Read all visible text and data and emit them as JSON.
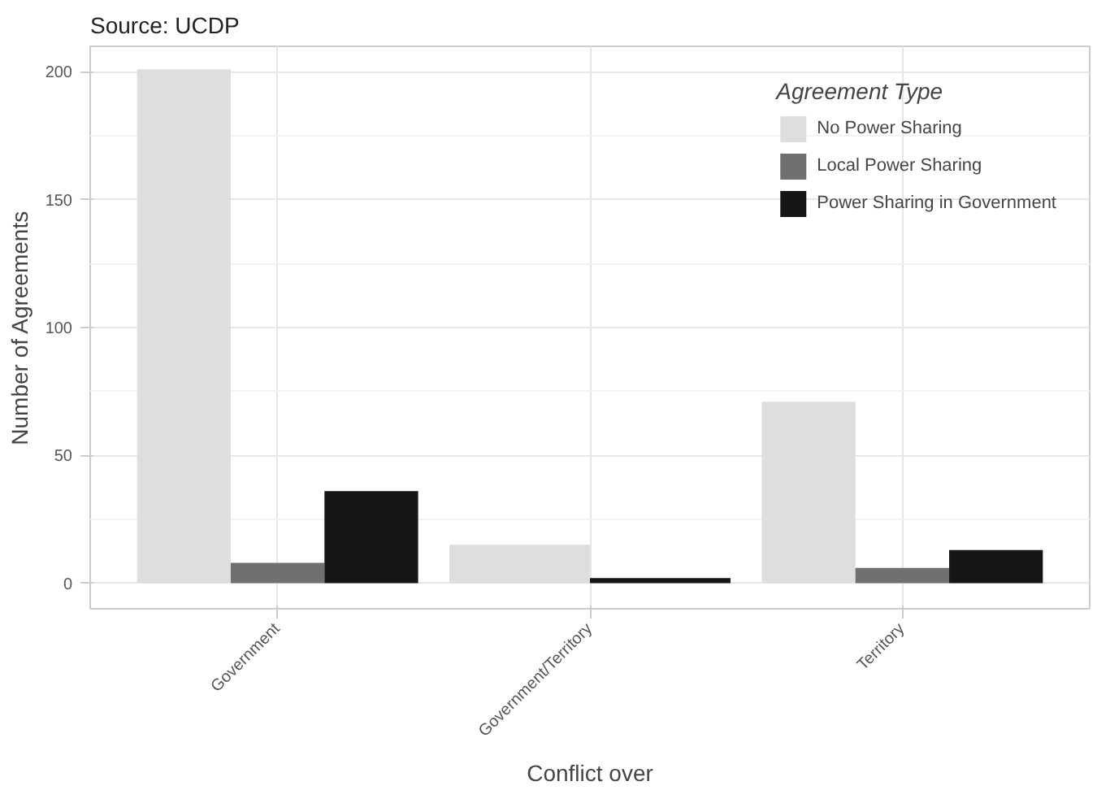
{
  "chart_data": {
    "type": "bar",
    "subtitle": "Source: UCDP",
    "xlabel": "Conflict over",
    "ylabel": "Number of Agreements",
    "legend_title": "Agreement Type",
    "categories": [
      "Government",
      "Government/Territory",
      "Territory"
    ],
    "series": [
      {
        "name": "No Power Sharing",
        "color": "#dedede",
        "values": [
          201,
          15,
          71
        ]
      },
      {
        "name": "Local Power Sharing",
        "color": "#707070",
        "values": [
          8,
          null,
          6
        ]
      },
      {
        "name": "Power Sharing in Government",
        "color": "#161616",
        "values": [
          36,
          2,
          13
        ]
      }
    ],
    "ylim": [
      -10,
      210
    ],
    "yticks": [
      0,
      50,
      100,
      150,
      200
    ],
    "grid": true,
    "legend": "top right"
  }
}
